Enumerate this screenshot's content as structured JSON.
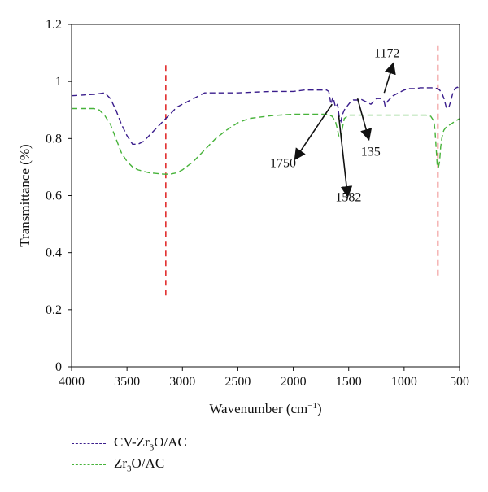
{
  "chart_data": {
    "type": "line",
    "xlabel": "Wavenumber (cm",
    "xlabel_sup": "−1",
    "xlabel_end": ")",
    "ylabel": "Transmittance (%)",
    "xlim": [
      4000,
      500
    ],
    "ylim": [
      0,
      1.2
    ],
    "x_ticks": [
      4000,
      3500,
      3000,
      2500,
      2000,
      1500,
      1000,
      500
    ],
    "y_ticks": [
      0,
      0.2,
      0.4,
      0.6,
      0.8,
      1,
      1.2
    ],
    "y_tick_labels": [
      "0",
      "0.2",
      "0.4",
      "0.6",
      "0.8",
      "1",
      "1.2"
    ],
    "grid": false,
    "legend_position": "bottom-left, below plot",
    "series": [
      {
        "name_main": "CV-Zr",
        "name_sub": "3",
        "name_end": "O/AC",
        "color": "#3a1d8c",
        "x": [
          4000,
          3800,
          3700,
          3650,
          3600,
          3550,
          3500,
          3450,
          3400,
          3350,
          3300,
          3250,
          3200,
          3150,
          3100,
          3050,
          3000,
          2900,
          2800,
          2700,
          2500,
          2200,
          2000,
          1900,
          1800,
          1700,
          1680,
          1660,
          1650,
          1640,
          1620,
          1600,
          1590,
          1582,
          1570,
          1560,
          1540,
          1520,
          1500,
          1480,
          1460,
          1440,
          1420,
          1400,
          1350,
          1300,
          1250,
          1200,
          1180,
          1172,
          1150,
          1100,
          1050,
          1000,
          950,
          900,
          850,
          800,
          750,
          700,
          680,
          660,
          640,
          620,
          600,
          580,
          560,
          540,
          520,
          500
        ],
        "y": [
          0.95,
          0.955,
          0.96,
          0.94,
          0.9,
          0.85,
          0.81,
          0.78,
          0.78,
          0.79,
          0.81,
          0.83,
          0.85,
          0.87,
          0.89,
          0.91,
          0.92,
          0.94,
          0.96,
          0.96,
          0.96,
          0.965,
          0.965,
          0.97,
          0.97,
          0.97,
          0.965,
          0.92,
          0.935,
          0.945,
          0.91,
          0.92,
          0.89,
          0.87,
          0.86,
          0.88,
          0.9,
          0.91,
          0.92,
          0.93,
          0.935,
          0.935,
          0.935,
          0.94,
          0.93,
          0.92,
          0.94,
          0.94,
          0.93,
          0.915,
          0.93,
          0.95,
          0.96,
          0.97,
          0.975,
          0.975,
          0.978,
          0.978,
          0.978,
          0.975,
          0.97,
          0.96,
          0.94,
          0.91,
          0.905,
          0.93,
          0.96,
          0.975,
          0.98,
          0.975
        ]
      },
      {
        "name_main": "Zr",
        "name_sub": "3",
        "name_end": "O/AC",
        "color": "#47b33a",
        "x": [
          4000,
          3800,
          3750,
          3700,
          3650,
          3600,
          3550,
          3500,
          3450,
          3400,
          3350,
          3300,
          3250,
          3200,
          3150,
          3100,
          3050,
          3000,
          2950,
          2900,
          2850,
          2800,
          2750,
          2700,
          2600,
          2500,
          2400,
          2200,
          2000,
          1800,
          1700,
          1650,
          1620,
          1600,
          1590,
          1580,
          1570,
          1560,
          1540,
          1500,
          1400,
          1200,
          1000,
          800,
          760,
          730,
          720,
          710,
          700,
          690,
          680,
          670,
          660,
          650,
          640,
          620,
          600,
          580,
          560,
          540,
          520,
          500
        ],
        "y": [
          0.905,
          0.905,
          0.9,
          0.88,
          0.85,
          0.8,
          0.75,
          0.72,
          0.7,
          0.69,
          0.685,
          0.68,
          0.678,
          0.676,
          0.675,
          0.676,
          0.68,
          0.69,
          0.705,
          0.72,
          0.74,
          0.76,
          0.78,
          0.8,
          0.83,
          0.855,
          0.87,
          0.88,
          0.885,
          0.885,
          0.885,
          0.878,
          0.86,
          0.83,
          0.81,
          0.8,
          0.8,
          0.83,
          0.87,
          0.882,
          0.882,
          0.882,
          0.882,
          0.882,
          0.878,
          0.86,
          0.82,
          0.76,
          0.7,
          0.7,
          0.72,
          0.77,
          0.8,
          0.82,
          0.83,
          0.84,
          0.845,
          0.85,
          0.855,
          0.86,
          0.865,
          0.87
        ]
      }
    ],
    "reference_lines": [
      {
        "x": 3150,
        "y_from": 0.25,
        "y_to": 1.07,
        "color": "#e02020"
      },
      {
        "x": 695,
        "y_from": 0.32,
        "y_to": 1.13,
        "color": "#e02020"
      }
    ],
    "annotations": [
      {
        "text": "1172",
        "arrow_from": [
          1180,
          0.96
        ],
        "arrow_to": [
          1100,
          1.06
        ],
        "text_at": [
          1270,
          1.085
        ]
      },
      {
        "text": "1750",
        "arrow_from": [
          1650,
          0.92
        ],
        "arrow_to": [
          1980,
          0.73
        ],
        "text_at": [
          2210,
          0.7
        ]
      },
      {
        "text": "1582",
        "arrow_from": [
          1590,
          0.88
        ],
        "arrow_to": [
          1510,
          0.6
        ],
        "text_at": [
          1620,
          0.58
        ]
      },
      {
        "text": "135",
        "arrow_from": [
          1420,
          0.94
        ],
        "arrow_to": [
          1320,
          0.8
        ],
        "text_at": [
          1390,
          0.74
        ]
      }
    ]
  }
}
